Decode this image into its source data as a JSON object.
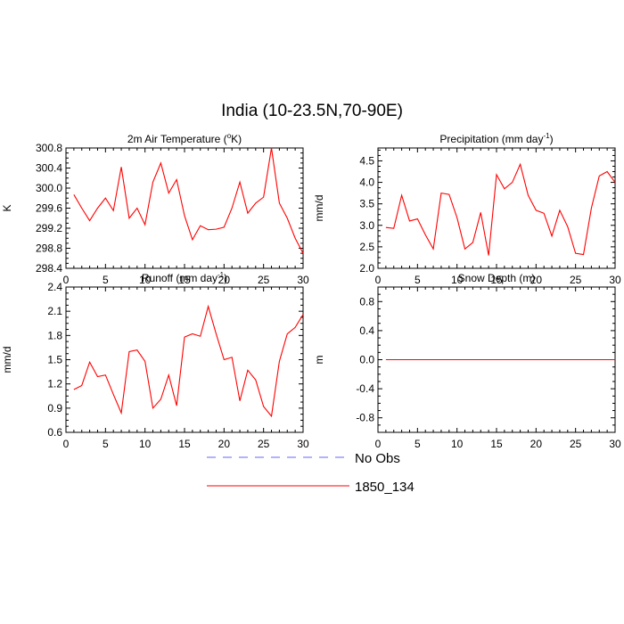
{
  "title": "India (10-23.5N,70-90E)",
  "colors": {
    "model": "#ff0000",
    "obs": "#6666ff",
    "axis": "#000000"
  },
  "legend": [
    {
      "label": "No Obs",
      "style": "dashed",
      "color": "#6666ff"
    },
    {
      "label": "1850_134",
      "style": "solid",
      "color": "#ff0000"
    }
  ],
  "chart_data": [
    {
      "type": "line",
      "title": "2m Air Temperature (°K)",
      "title_main": "2m Air Temperature (",
      "title_sup": "o",
      "title_tail": "K)",
      "ylabel": "K",
      "xlim": [
        0,
        30
      ],
      "ylim": [
        298.4,
        300.8
      ],
      "xticks": [
        0,
        5,
        10,
        15,
        20,
        25,
        30
      ],
      "yticks": [
        298.4,
        298.8,
        299.2,
        299.6,
        300.0,
        300.4,
        300.8
      ],
      "ytick_labels": [
        "298.4",
        "298.8",
        "299.2",
        "299.6",
        "300.0",
        "300.4",
        "300.8"
      ],
      "x": [
        1,
        2,
        3,
        4,
        5,
        6,
        7,
        8,
        9,
        10,
        11,
        12,
        13,
        14,
        15,
        16,
        17,
        18,
        19,
        20,
        21,
        22,
        23,
        24,
        25,
        26,
        27,
        28,
        29,
        30
      ],
      "series": [
        {
          "name": "1850_134",
          "values": [
            299.87,
            299.6,
            299.35,
            299.6,
            299.8,
            299.55,
            300.42,
            299.4,
            299.6,
            299.27,
            300.12,
            300.5,
            299.9,
            300.17,
            299.45,
            298.97,
            299.25,
            299.17,
            299.18,
            299.22,
            299.6,
            300.12,
            299.5,
            299.7,
            299.82,
            300.8,
            299.7,
            299.4,
            299.0,
            298.7
          ]
        }
      ]
    },
    {
      "type": "line",
      "title": "Precipitation (mm day-1)",
      "title_main": "Precipitation (mm day",
      "title_sup": "-1",
      "title_tail": ")",
      "ylabel": "mm/d",
      "xlim": [
        0,
        30
      ],
      "ylim": [
        2.0,
        4.8
      ],
      "xticks": [
        0,
        5,
        10,
        15,
        20,
        25,
        30
      ],
      "yticks": [
        2.0,
        2.5,
        3.0,
        3.5,
        4.0,
        4.5
      ],
      "ytick_labels": [
        "2.0",
        "2.5",
        "3.0",
        "3.5",
        "4.0",
        "4.5"
      ],
      "x": [
        1,
        2,
        3,
        4,
        5,
        6,
        7,
        8,
        9,
        10,
        11,
        12,
        13,
        14,
        15,
        16,
        17,
        18,
        19,
        20,
        21,
        22,
        23,
        24,
        25,
        26,
        27,
        28,
        29,
        30
      ],
      "series": [
        {
          "name": "1850_134",
          "values": [
            2.95,
            2.93,
            3.7,
            3.1,
            3.15,
            2.78,
            2.45,
            3.75,
            3.72,
            3.18,
            2.45,
            2.6,
            3.3,
            2.3,
            4.18,
            3.85,
            4.0,
            4.42,
            3.7,
            3.35,
            3.28,
            2.75,
            3.35,
            2.97,
            2.35,
            2.32,
            3.4,
            4.15,
            4.25,
            4.0
          ]
        }
      ]
    },
    {
      "type": "line",
      "title": "Runoff (mm day-1)",
      "title_main": "Runoff (mm day",
      "title_sup": "-1",
      "title_tail": ")",
      "ylabel": "mm/d",
      "xlim": [
        0,
        30
      ],
      "ylim": [
        0.6,
        2.4
      ],
      "xticks": [
        0,
        5,
        10,
        15,
        20,
        25,
        30
      ],
      "yticks": [
        0.6,
        0.9,
        1.2,
        1.5,
        1.8,
        2.1,
        2.4
      ],
      "ytick_labels": [
        "0.6",
        "0.9",
        "1.2",
        "1.5",
        "1.8",
        "2.1",
        "2.4"
      ],
      "x": [
        1,
        2,
        3,
        4,
        5,
        6,
        7,
        8,
        9,
        10,
        11,
        12,
        13,
        14,
        15,
        16,
        17,
        18,
        19,
        20,
        21,
        22,
        23,
        24,
        25,
        26,
        27,
        28,
        29,
        30
      ],
      "series": [
        {
          "name": "1850_134",
          "values": [
            1.13,
            1.18,
            1.47,
            1.29,
            1.31,
            1.07,
            0.84,
            1.6,
            1.62,
            1.48,
            0.9,
            1.01,
            1.31,
            0.93,
            1.78,
            1.82,
            1.79,
            2.16,
            1.82,
            1.5,
            1.53,
            0.99,
            1.37,
            1.25,
            0.92,
            0.8,
            1.48,
            1.82,
            1.9,
            2.06
          ]
        }
      ]
    },
    {
      "type": "line",
      "title": "Snow Depth (m)",
      "title_main": "Snow Depth (m)",
      "title_sup": "",
      "title_tail": "",
      "ylabel": "m",
      "xlim": [
        0,
        30
      ],
      "ylim": [
        -1.0,
        1.0
      ],
      "xticks": [
        0,
        5,
        10,
        15,
        20,
        25,
        30
      ],
      "yticks": [
        -0.8,
        -0.4,
        0.0,
        0.4,
        0.8
      ],
      "ytick_labels": [
        "-0.8",
        "-0.4",
        "0.0",
        "0.4",
        "0.8"
      ],
      "x": [
        1,
        2,
        3,
        4,
        5,
        6,
        7,
        8,
        9,
        10,
        11,
        12,
        13,
        14,
        15,
        16,
        17,
        18,
        19,
        20,
        21,
        22,
        23,
        24,
        25,
        26,
        27,
        28,
        29,
        30
      ],
      "series": [
        {
          "name": "1850_134",
          "values": [
            0,
            0,
            0,
            0,
            0,
            0,
            0,
            0,
            0,
            0,
            0,
            0,
            0,
            0,
            0,
            0,
            0,
            0,
            0,
            0,
            0,
            0,
            0,
            0,
            0,
            0,
            0,
            0,
            0,
            0
          ]
        }
      ]
    }
  ]
}
